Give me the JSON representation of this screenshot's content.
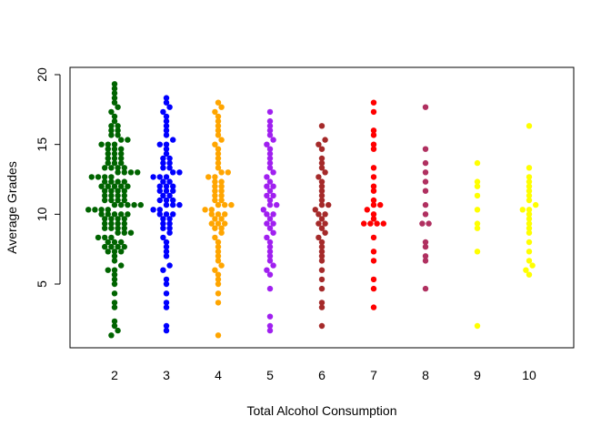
{
  "chart_data": {
    "type": "scatter",
    "subtype": "beeswarm",
    "title": "",
    "xlabel": "Total Alcohol Consumption",
    "ylabel": "Average Grades",
    "x_ticks": [
      "2",
      "3",
      "4",
      "5",
      "6",
      "7",
      "8",
      "9",
      "10"
    ],
    "y_ticks": [
      5,
      10,
      15,
      20
    ],
    "ylim": [
      0,
      20
    ],
    "grid": false,
    "legend": "none",
    "groups": [
      {
        "x": "2",
        "color": "#006400",
        "values": [
          1.33,
          1.67,
          2,
          2.33,
          3.33,
          3.67,
          4.33,
          5,
          5.33,
          5.67,
          6,
          6,
          6.33,
          6.67,
          7,
          7.33,
          7.33,
          7.33,
          7.67,
          7.67,
          7.67,
          7.67,
          8,
          8,
          8,
          8.33,
          8.33,
          8.33,
          8.67,
          8.67,
          8.67,
          9,
          9,
          9,
          9,
          9.33,
          9.33,
          9.33,
          9.33,
          9.67,
          9.67,
          9.67,
          9.67,
          10,
          10,
          10,
          10,
          10,
          10.33,
          10.33,
          10.33,
          10.33,
          10.67,
          10.67,
          10.67,
          10.67,
          10.67,
          11,
          11,
          11,
          11,
          11.33,
          11.33,
          11.33,
          11.33,
          11.67,
          11.67,
          11.67,
          11.67,
          12,
          12,
          12,
          12,
          12,
          12.33,
          12.33,
          12.33,
          12.33,
          12.67,
          12.67,
          12.67,
          12.67,
          13,
          13,
          13,
          13,
          13.33,
          13.33,
          13.33,
          13.33,
          13.67,
          13.67,
          13.67,
          14,
          14,
          14,
          14.33,
          14.33,
          14.33,
          14.67,
          14.67,
          14.67,
          15,
          15,
          15,
          15.33,
          15.33,
          15.67,
          15.67,
          16,
          16,
          16.33,
          16.33,
          16.67,
          17,
          17.33,
          17.67,
          18,
          18.33,
          18.67,
          19,
          19.33
        ]
      },
      {
        "x": "3",
        "color": "#0000FF",
        "values": [
          1.67,
          2,
          3.33,
          3.67,
          4.33,
          5,
          5.33,
          6,
          6.33,
          7,
          7.33,
          7.67,
          8,
          8.33,
          8.67,
          9,
          9,
          9.33,
          9.33,
          9.67,
          9.67,
          10,
          10,
          10,
          10.33,
          10.33,
          10.67,
          10.67,
          10.67,
          11,
          11,
          11,
          11.33,
          11.33,
          11.67,
          11.67,
          11.67,
          12,
          12,
          12,
          12.33,
          12.33,
          12.67,
          12.67,
          12.67,
          13,
          13,
          13.33,
          13.33,
          13.67,
          13.67,
          14,
          14,
          14.33,
          14.67,
          15,
          15,
          15.33,
          15.67,
          16,
          16.33,
          16.67,
          17,
          17.33,
          17.67,
          18,
          18.33
        ]
      },
      {
        "x": "4",
        "color": "#FFA500",
        "values": [
          1.33,
          3.67,
          4.33,
          5,
          5.33,
          5.67,
          6,
          6.33,
          6.67,
          7,
          7.33,
          7.67,
          8,
          8.33,
          8.67,
          9,
          9,
          9.33,
          9.33,
          9.33,
          9.67,
          9.67,
          10,
          10,
          10,
          10.33,
          10.33,
          10.67,
          10.67,
          10.67,
          11,
          11,
          11.33,
          11.33,
          11.67,
          11.67,
          12,
          12,
          12.33,
          12.33,
          12.67,
          12.67,
          13,
          13,
          13.33,
          13.67,
          14,
          14.33,
          14.67,
          15,
          15.33,
          15.67,
          16,
          16.33,
          16.67,
          17,
          17.33,
          17.67,
          18
        ]
      },
      {
        "x": "5",
        "color": "#A020F0",
        "values": [
          1.67,
          2,
          2.67,
          4.67,
          5.67,
          6,
          6.33,
          6.67,
          7,
          7.33,
          7.67,
          8,
          8.33,
          8.67,
          9,
          9.33,
          9.33,
          9.67,
          10,
          10,
          10.33,
          10.67,
          10.67,
          11,
          11.33,
          11.33,
          11.67,
          12,
          12,
          12.33,
          12.67,
          13,
          13.33,
          13.67,
          14,
          14.33,
          14.67,
          15,
          15.33,
          15.67,
          16,
          16.33,
          16.67,
          17.33
        ]
      },
      {
        "x": "6",
        "color": "#A52A2A",
        "values": [
          2,
          3.33,
          3.67,
          4.67,
          5.33,
          6,
          6.67,
          7,
          7.33,
          7.67,
          8,
          8.33,
          8.67,
          9,
          9.33,
          9.33,
          9.67,
          10,
          10,
          10.33,
          10.67,
          10.67,
          11,
          11.33,
          11.67,
          12,
          12.33,
          12.67,
          13,
          13.33,
          13.67,
          14,
          14.67,
          15,
          15.33,
          16.33
        ]
      },
      {
        "x": "7",
        "color": "#FF0000",
        "values": [
          3.33,
          4.67,
          5.33,
          6.67,
          7.33,
          8.33,
          9.33,
          9.33,
          9.33,
          9.33,
          9.67,
          10,
          10.33,
          10.67,
          10.67,
          11,
          11.67,
          12,
          12.67,
          13.33,
          14.67,
          15,
          15.67,
          16,
          17.33,
          18
        ]
      },
      {
        "x": "8",
        "color": "#B03060",
        "values": [
          4.67,
          6.67,
          7,
          7.67,
          8,
          9.33,
          9.33,
          10,
          10.67,
          11.67,
          12.33,
          13,
          13.67,
          14.67,
          17.67
        ]
      },
      {
        "x": "9",
        "color": "#FFFF00",
        "values": [
          2,
          7.33,
          9,
          9.33,
          10.33,
          11.33,
          12,
          12.33,
          13.67
        ]
      },
      {
        "x": "10",
        "color": "#FFFF00",
        "values": [
          5.67,
          6,
          6.33,
          6.67,
          7.33,
          8,
          8.67,
          9,
          9.33,
          9.67,
          10,
          10.33,
          10.33,
          10.67,
          11,
          11.33,
          11.67,
          12,
          12.33,
          12.67,
          13.33,
          16.33
        ]
      }
    ]
  }
}
